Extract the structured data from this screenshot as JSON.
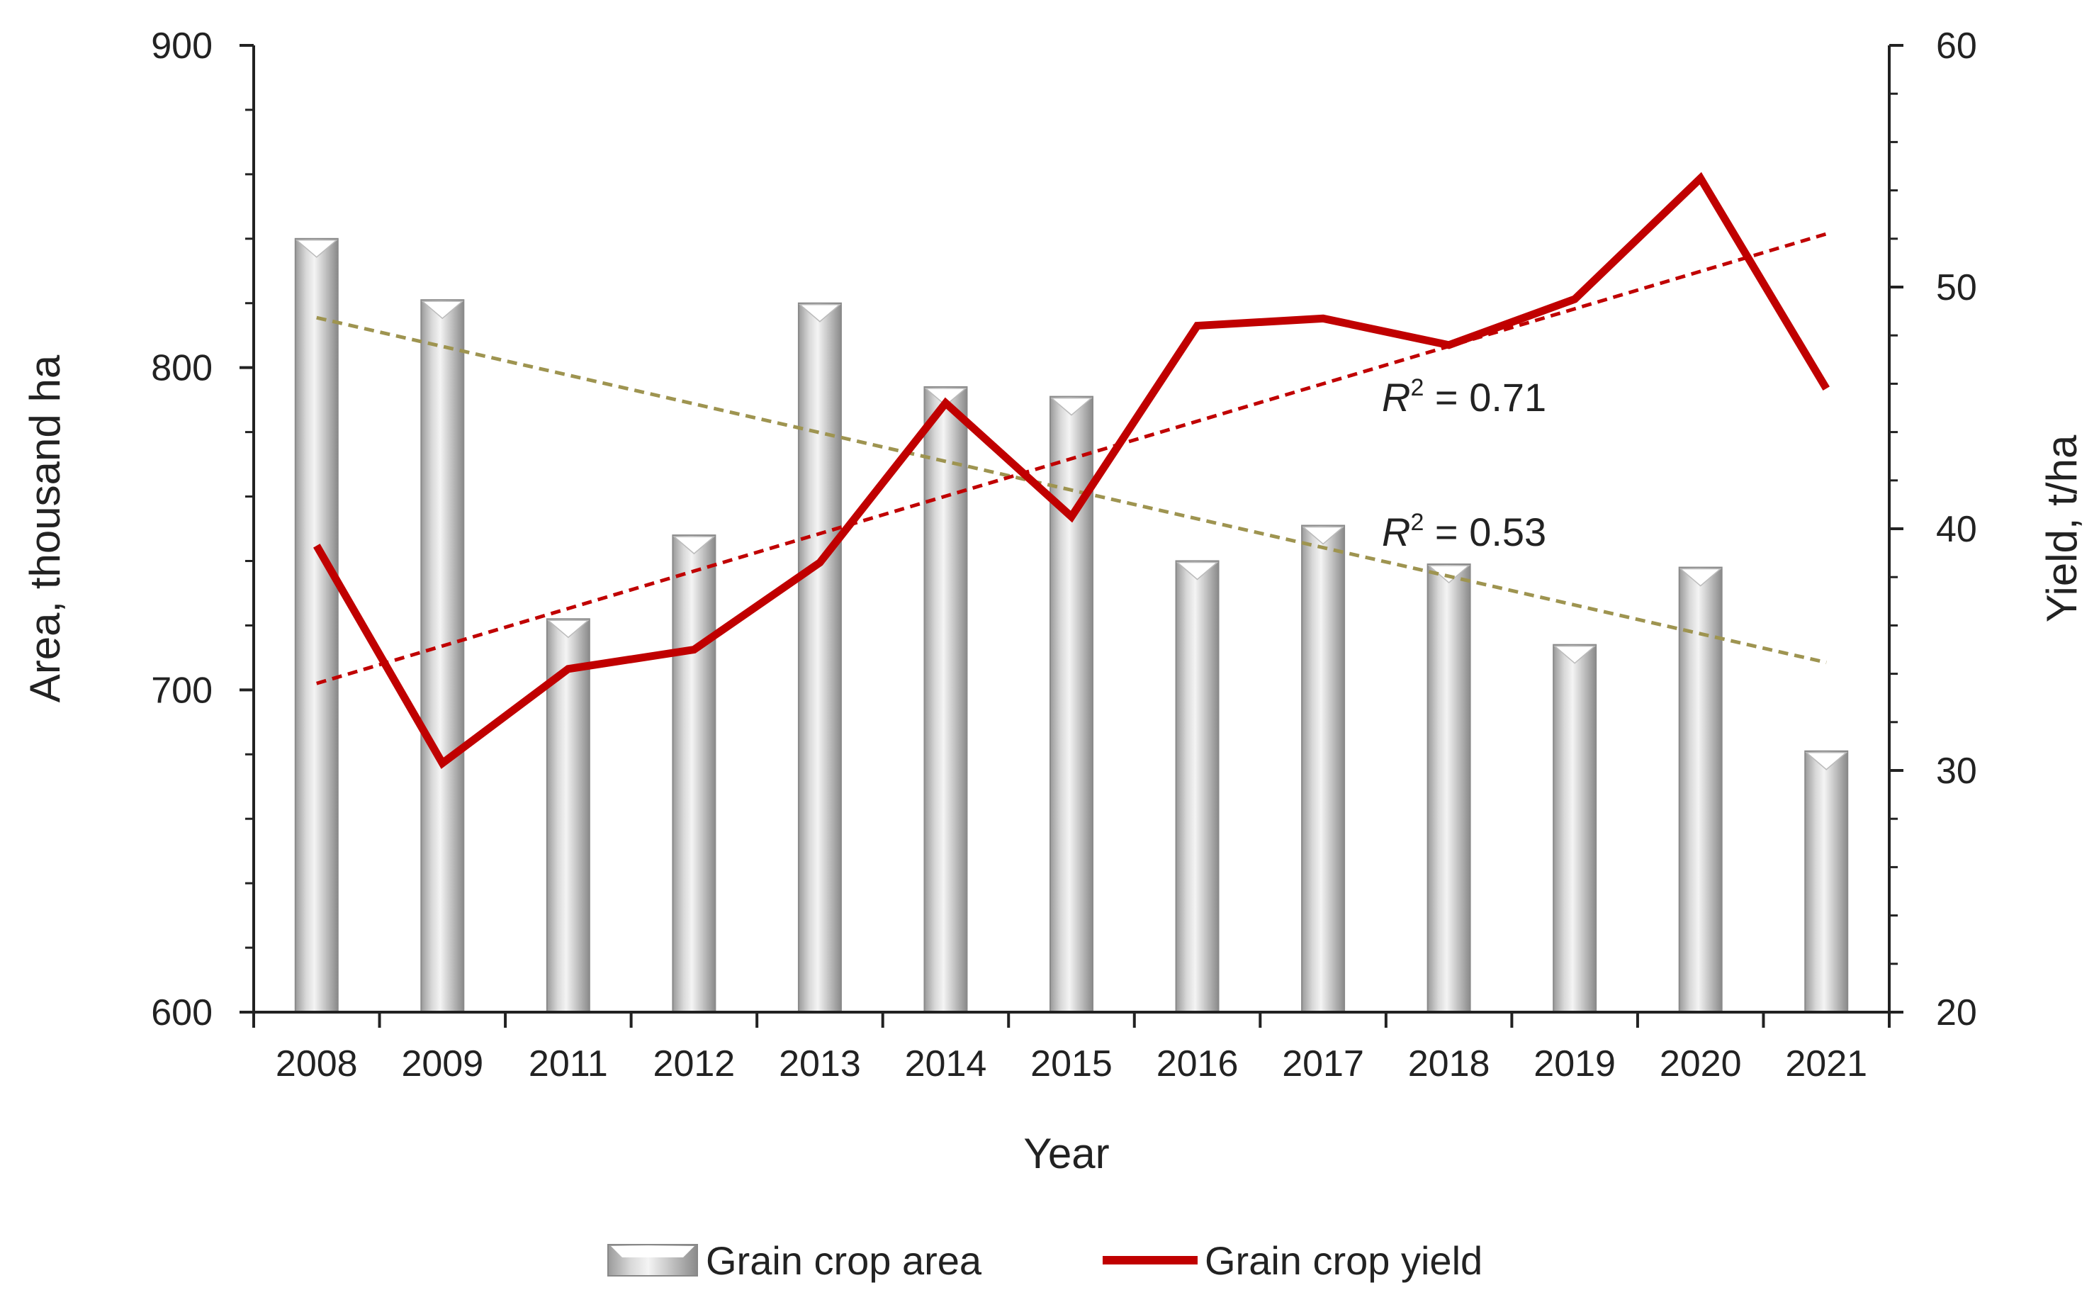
{
  "chart_data": {
    "type": "bar",
    "title": "",
    "xlabel": "Year",
    "ylabel": "Area, thousand ha",
    "y2label": "Yield, t/ha",
    "ylim": [
      600,
      900
    ],
    "y2lim": [
      20,
      60
    ],
    "yticks": [
      "600",
      "700",
      "800",
      "900"
    ],
    "y2ticks": [
      "20",
      "30",
      "40",
      "50",
      "60"
    ],
    "categories": [
      "2008",
      "2009",
      "2011",
      "2012",
      "2013",
      "2014",
      "2015",
      "2016",
      "2017",
      "2018",
      "2019",
      "2020",
      "2021"
    ],
    "series": [
      {
        "name": "Grain crop area",
        "type": "bar",
        "axis": "left",
        "color": "#c8c8c8",
        "values": [
          840,
          821,
          722,
          748,
          820,
          794,
          791,
          740,
          751,
          739,
          714,
          738,
          681
        ]
      },
      {
        "name": "Grain crop yield",
        "type": "line",
        "axis": "right",
        "color": "#c00000",
        "values": [
          39.3,
          30.3,
          34.2,
          35.0,
          38.6,
          45.2,
          40.5,
          48.4,
          48.7,
          47.6,
          49.5,
          54.5,
          45.8
        ]
      }
    ],
    "trendlines": [
      {
        "series": "Grain crop area",
        "axis": "left",
        "start": 815.5,
        "end": 708.5,
        "color": "#9e9450",
        "label": "0.53"
      },
      {
        "series": "Grain crop yield",
        "axis": "right",
        "start": 33.6,
        "end": 52.2,
        "color": "#c00000",
        "label": "0.71"
      }
    ],
    "r2_prefix": "R",
    "r2_sup": "2",
    "r2_eq": " = ",
    "legend": [
      "Grain crop area",
      "Grain crop yield"
    ],
    "legend_position": "bottom",
    "grid": false
  }
}
